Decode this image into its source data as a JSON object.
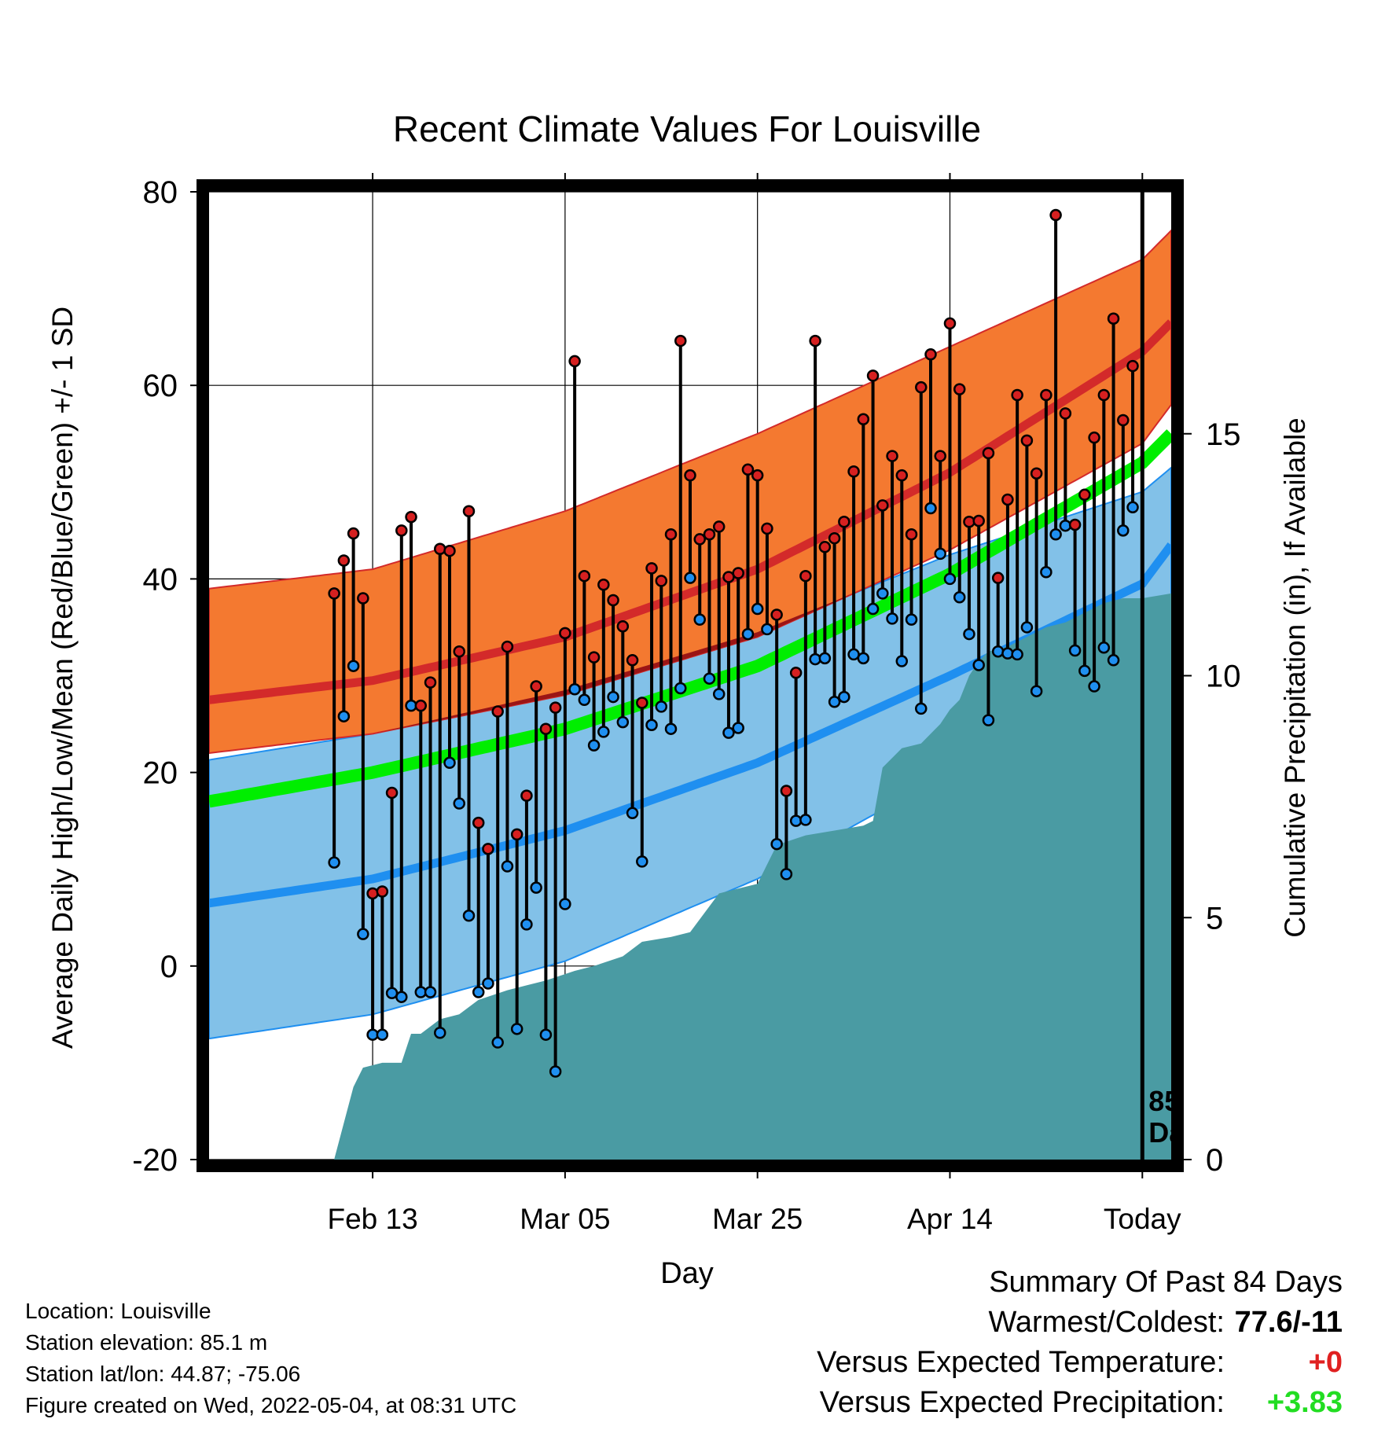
{
  "chart_data": {
    "type": "line",
    "title": "Recent Climate Values For Louisville",
    "xlabel": "Day",
    "ylabel": "Average Daily High/Low/Mean (Red/Blue/Green) +/- 1 SD",
    "y2label": "Cumulative Precipitation (in), If Available",
    "ylim": [
      -20,
      80
    ],
    "y2lim": [
      0,
      20
    ],
    "yticks": [
      "80",
      "60",
      "40",
      "20",
      "0",
      "-20"
    ],
    "y2ticks": [
      "15",
      "10",
      "5",
      "0"
    ],
    "xticks": [
      "Feb 13",
      "Mar 05",
      "Mar 25",
      "Apr 14",
      "Today"
    ],
    "xlim_day": [
      -97,
      3
    ],
    "today_label_line1": "85",
    "today_label_line2": "Days",
    "normal_high": {
      "days": [
        -97,
        -80,
        -60,
        -40,
        -20,
        0,
        3
      ],
      "mean": [
        27.5,
        29.5,
        34,
        41,
        51,
        63.5,
        66.5
      ],
      "upper": [
        39,
        41,
        47,
        55,
        64,
        73,
        76
      ],
      "lower": [
        22,
        24,
        28,
        34,
        43,
        54,
        58
      ]
    },
    "normal_low": {
      "days": [
        -97,
        -80,
        -60,
        -40,
        -20,
        0,
        3
      ],
      "mean": [
        6.5,
        9,
        14,
        21,
        30,
        39.5,
        43.5
      ],
      "upper": [
        21.3,
        24,
        28.5,
        34.5,
        42.5,
        49,
        51.5
      ],
      "lower": [
        -7.5,
        -5,
        0.5,
        9,
        20,
        32.5,
        36.5
      ]
    },
    "normal_mean": {
      "days": [
        -97,
        -80,
        -60,
        -40,
        -20,
        0,
        3
      ],
      "mean": [
        17,
        20,
        24.5,
        31,
        40.5,
        52,
        55
      ]
    },
    "daily_observations": {
      "days": [
        -84,
        -83,
        -82,
        -81,
        -80,
        -79,
        -78,
        -77,
        -76,
        -75,
        -74,
        -73,
        -72,
        -71,
        -70,
        -69,
        -68,
        -67,
        -66,
        -65,
        -64,
        -63,
        -62,
        -61,
        -60,
        -59,
        -58,
        -57,
        -56,
        -55,
        -54,
        -53,
        -52,
        -51,
        -50,
        -49,
        -48,
        -47,
        -46,
        -45,
        -44,
        -43,
        -42,
        -41,
        -40,
        -39,
        -38,
        -37,
        -36,
        -35,
        -34,
        -33,
        -32,
        -31,
        -30,
        -29,
        -28,
        -27,
        -26,
        -25,
        -24,
        -23,
        -22,
        -21,
        -20,
        -19,
        -18,
        -17,
        -16,
        -15,
        -14,
        -13,
        -12,
        -11,
        -10,
        -9,
        -8,
        -7,
        -6,
        -5,
        -4,
        -3,
        -2,
        -1
      ],
      "high": [
        38.5,
        41.9,
        44.7,
        38,
        7.5,
        7.7,
        17.9,
        45,
        46.4,
        26.9,
        29.3,
        43.1,
        42.9,
        32.5,
        47,
        14.8,
        12.1,
        26.3,
        33,
        13.6,
        17.6,
        28.9,
        24.5,
        26.7,
        34.4,
        62.5,
        40.3,
        31.9,
        39.4,
        37.8,
        35.1,
        31.6,
        27.2,
        41.1,
        39.8,
        44.6,
        64.6,
        50.7,
        44.1,
        44.6,
        45.4,
        40.2,
        40.6,
        51.3,
        50.7,
        45.2,
        36.3,
        18.1,
        30.3,
        40.3,
        64.6,
        43.3,
        44.2,
        45.9,
        51.1,
        56.5,
        61,
        47.6,
        52.7,
        50.7,
        44.6,
        59.8,
        63.2,
        52.7,
        66.4,
        59.6,
        45.9,
        46,
        53,
        40.1,
        48.2,
        59,
        54.3,
        50.9,
        59,
        77.6,
        57.1,
        45.6,
        48.7,
        54.6,
        59,
        66.9,
        56.4,
        62
      ],
      "low": [
        10.7,
        25.8,
        31,
        3.3,
        -7.1,
        -7.1,
        -2.8,
        -3.2,
        26.9,
        -2.7,
        -2.7,
        -6.9,
        21,
        16.8,
        5.2,
        -2.7,
        -1.8,
        -7.9,
        10.3,
        -6.5,
        4.3,
        8.1,
        -7.1,
        -10.9,
        6.4,
        28.6,
        27.5,
        22.8,
        24.2,
        27.8,
        25.2,
        15.8,
        10.8,
        24.9,
        26.8,
        24.5,
        28.7,
        40.1,
        35.8,
        29.7,
        28.1,
        24.1,
        24.6,
        34.3,
        36.9,
        34.8,
        12.6,
        9.5,
        15,
        15.1,
        31.7,
        31.8,
        27.3,
        27.8,
        32.2,
        31.8,
        36.9,
        38.5,
        35.9,
        31.5,
        35.8,
        26.6,
        47.3,
        42.6,
        40,
        38.1,
        34.3,
        31.1,
        25.4,
        32.5,
        32.3,
        32.2,
        35,
        28.4,
        40.7,
        44.6,
        45.5,
        32.6,
        30.5,
        28.9,
        32.9,
        31.6,
        45,
        47.4
      ]
    },
    "cumulative_precip": {
      "days": [
        -84,
        -82,
        -81,
        -79,
        -77,
        -76,
        -75,
        -73,
        -71,
        -69,
        -66,
        -64,
        -62,
        -59,
        -57,
        -54,
        -52,
        -49,
        -47,
        -44,
        -42,
        -40,
        -38,
        -35,
        -32,
        -29,
        -28,
        -27,
        -25,
        -23,
        -21,
        -20,
        -19,
        -18,
        -17,
        -16,
        -14,
        -12,
        -10,
        -8,
        -6,
        -4,
        -2,
        0,
        3
      ],
      "values": [
        0,
        1.5,
        1.9,
        2.0,
        2.0,
        2.6,
        2.6,
        2.9,
        3.0,
        3.3,
        3.5,
        3.6,
        3.7,
        3.9,
        4.0,
        4.2,
        4.5,
        4.6,
        4.7,
        5.5,
        5.6,
        5.7,
        6.5,
        6.7,
        6.8,
        6.9,
        7.0,
        8.1,
        8.5,
        8.6,
        9.0,
        9.3,
        9.5,
        10.0,
        10.3,
        10.5,
        10.6,
        10.8,
        11.0,
        11.1,
        11.3,
        11.5,
        11.6,
        11.6,
        11.7
      ]
    },
    "colors": {
      "high_band": "#f47930",
      "high_mean": "#d32a2a",
      "low_band": "#82c1e8",
      "low_mean": "#1f8ff0",
      "overlap": "#9b1515",
      "mean_line": "#00ee00",
      "precip": "#4a9ba3",
      "high_marker": "#d62020",
      "low_marker": "#1f8ff0"
    }
  },
  "info": {
    "location": "Location: Louisville",
    "elevation": "Station elevation: 85.1 m",
    "latlon": "Station lat/lon: 44.87; -75.06",
    "created": "Figure created on Wed, 2022-05-04, at 08:31 UTC"
  },
  "summary": {
    "title": "Summary Of Past 84 Days",
    "warmest_label": "Warmest/Coldest:",
    "warmest_value": "77.6/-11",
    "temp_label": "Versus Expected Temperature:",
    "temp_value": "+0",
    "temp_color": "#e02020",
    "precip_label": "Versus Expected Precipitation:",
    "precip_value": "+3.83",
    "precip_color": "#22dd22"
  }
}
